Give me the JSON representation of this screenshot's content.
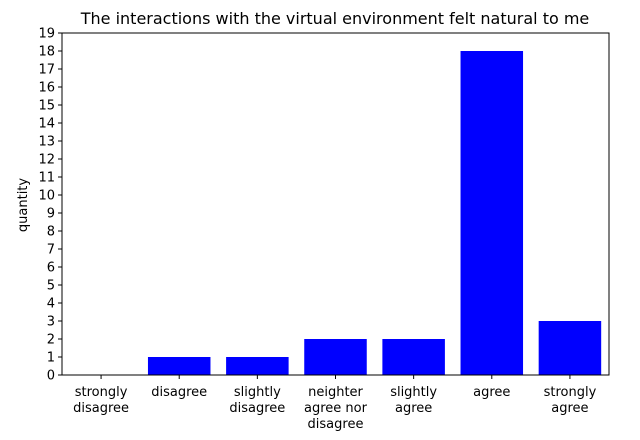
{
  "chart_data": {
    "type": "bar",
    "title": "The interactions with the virtual environment felt natural to me",
    "xlabel": "",
    "ylabel": "quantity",
    "categories": [
      [
        "strongly",
        "disagree"
      ],
      [
        "disagree"
      ],
      [
        "slightly",
        "disagree"
      ],
      [
        "neighter",
        "agree nor",
        "disagree"
      ],
      [
        "slightly",
        "agree"
      ],
      [
        "agree"
      ],
      [
        "strongly",
        "agree"
      ]
    ],
    "values": [
      0,
      1,
      1,
      2,
      2,
      18,
      3
    ],
    "ylim": [
      0,
      19
    ],
    "yticks": [
      "0",
      "1",
      "2",
      "3",
      "4",
      "5",
      "6",
      "7",
      "8",
      "9",
      "10",
      "11",
      "12",
      "13",
      "14",
      "15",
      "16",
      "17",
      "18",
      "19"
    ],
    "bar_color": "#0000ff",
    "grid": false,
    "legend": "none"
  }
}
